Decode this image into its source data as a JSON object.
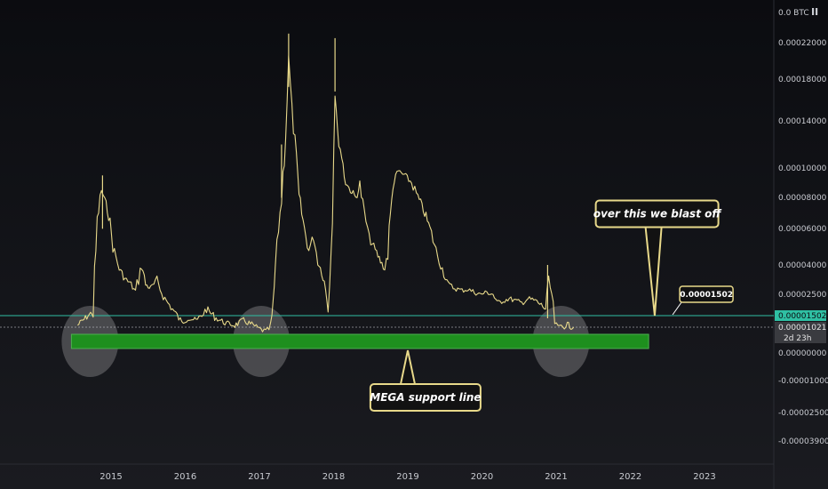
{
  "header": {
    "currency_label": "0.0 BTC"
  },
  "chart_data": {
    "type": "line",
    "y_unit": "BTC",
    "y_scale": "log-like",
    "y_ticks": [
      "0.00022000",
      "0.00018000",
      "0.00014000",
      "0.00010000",
      "0.00008000",
      "0.00006000",
      "0.00004000",
      "0.00002500",
      "0.00000000",
      "-0.00001000",
      "-0.00002500",
      "-0.00003900"
    ],
    "x_ticks": [
      "2015",
      "2016",
      "2017",
      "2018",
      "2019",
      "2020",
      "2021",
      "2022",
      "2023"
    ],
    "series": [
      {
        "points": [
          [
            "2014-07-20",
            1.1e-05
          ],
          [
            "2014-08-15",
            1.3e-05
          ],
          [
            "2014-09-10",
            1.5e-05
          ],
          [
            "2014-10-05",
            1.7e-05
          ],
          [
            "2014-10-25",
            6.5e-05
          ],
          [
            "2014-11-15",
            8.5e-05
          ],
          [
            "2014-12-01",
            7.8e-05
          ],
          [
            "2014-12-20",
            7e-05
          ],
          [
            "2015-01-10",
            5e-05
          ],
          [
            "2015-02-10",
            3.8e-05
          ],
          [
            "2015-03-10",
            3.3e-05
          ],
          [
            "2015-04-10",
            3e-05
          ],
          [
            "2015-05-01",
            2.6e-05
          ],
          [
            "2015-06-01",
            4e-05
          ],
          [
            "2015-06-20",
            3e-05
          ],
          [
            "2015-07-15",
            2.8e-05
          ],
          [
            "2015-08-15",
            3.2e-05
          ],
          [
            "2015-09-15",
            2.4e-05
          ],
          [
            "2015-10-15",
            2e-05
          ],
          [
            "2015-11-15",
            1.6e-05
          ],
          [
            "2015-12-15",
            1.2e-05
          ],
          [
            "2016-01-15",
            1.4e-05
          ],
          [
            "2016-03-01",
            1.3e-05
          ],
          [
            "2016-04-15",
            1.8e-05
          ],
          [
            "2016-06-01",
            1.4e-05
          ],
          [
            "2016-07-15",
            1.2e-05
          ],
          [
            "2016-09-01",
            1.1e-05
          ],
          [
            "2016-10-15",
            1.3e-05
          ],
          [
            "2016-12-01",
            1.1e-05
          ],
          [
            "2017-01-01",
            9.5e-06
          ],
          [
            "2017-02-01",
            8.5e-06
          ],
          [
            "2017-02-25",
            1e-05
          ],
          [
            "2017-03-10",
            2e-05
          ],
          [
            "2017-03-20",
            3.8e-05
          ],
          [
            "2017-04-05",
            6e-05
          ],
          [
            "2017-04-20",
            8e-05
          ],
          [
            "2017-05-10",
            0.00013
          ],
          [
            "2017-05-25",
            0.0002
          ],
          [
            "2017-06-10",
            0.00015
          ],
          [
            "2017-06-25",
            0.00012
          ],
          [
            "2017-07-15",
            8e-05
          ],
          [
            "2017-08-10",
            6e-05
          ],
          [
            "2017-09-01",
            4.8e-05
          ],
          [
            "2017-09-25",
            5.6e-05
          ],
          [
            "2017-10-15",
            4.2e-05
          ],
          [
            "2017-11-10",
            3.5e-05
          ],
          [
            "2017-12-05",
            2e-05
          ],
          [
            "2017-12-20",
            5e-05
          ],
          [
            "2018-01-08",
            0.00017
          ],
          [
            "2018-01-20",
            0.00013
          ],
          [
            "2018-02-10",
            0.00011
          ],
          [
            "2018-03-01",
            9e-05
          ],
          [
            "2018-03-25",
            8.5e-05
          ],
          [
            "2018-04-20",
            8e-05
          ],
          [
            "2018-05-10",
            8.8e-05
          ],
          [
            "2018-06-01",
            7e-05
          ],
          [
            "2018-06-25",
            5.5e-05
          ],
          [
            "2018-07-25",
            4.8e-05
          ],
          [
            "2018-08-20",
            4.2e-05
          ],
          [
            "2018-09-10",
            3.8e-05
          ],
          [
            "2018-09-25",
            4.8e-05
          ],
          [
            "2018-10-20",
            8.8e-05
          ],
          [
            "2018-11-15",
            9.8e-05
          ],
          [
            "2018-12-15",
            9.5e-05
          ],
          [
            "2019-01-20",
            9e-05
          ],
          [
            "2019-02-20",
            8e-05
          ],
          [
            "2019-03-25",
            7e-05
          ],
          [
            "2019-04-20",
            6e-05
          ],
          [
            "2019-05-20",
            4.8e-05
          ],
          [
            "2019-06-20",
            3.8e-05
          ],
          [
            "2019-07-20",
            3e-05
          ],
          [
            "2019-08-20",
            2.8e-05
          ],
          [
            "2019-09-25",
            2.7e-05
          ],
          [
            "2019-10-25",
            2.75e-05
          ],
          [
            "2019-11-25",
            2.6e-05
          ],
          [
            "2019-12-25",
            2.5e-05
          ],
          [
            "2020-01-25",
            2.6e-05
          ],
          [
            "2020-02-25",
            2.5e-05
          ],
          [
            "2020-03-15",
            2.1e-05
          ],
          [
            "2020-04-15",
            2.2e-05
          ],
          [
            "2020-05-15",
            2.3e-05
          ],
          [
            "2020-06-15",
            2.2e-05
          ],
          [
            "2020-07-15",
            2.1e-05
          ],
          [
            "2020-08-15",
            2.3e-05
          ],
          [
            "2020-09-20",
            2.2e-05
          ],
          [
            "2020-10-20",
            2e-05
          ],
          [
            "2020-11-10",
            1.8e-05
          ],
          [
            "2020-11-25",
            3.2e-05
          ],
          [
            "2020-12-10",
            2.5e-05
          ],
          [
            "2020-12-25",
            1.2e-05
          ],
          [
            "2021-01-10",
            1e-05
          ],
          [
            "2021-01-25",
            1.1e-05
          ],
          [
            "2021-02-10",
            1.05e-05
          ],
          [
            "2021-02-25",
            1.15e-05
          ],
          [
            "2021-03-15",
            1.02e-05
          ],
          [
            "2021-03-28",
            1.02e-05
          ]
        ]
      }
    ],
    "horizontal_lines": [
      {
        "value": 1.502e-05,
        "label": "0.00001502",
        "color": "#2fbfa3"
      },
      {
        "value": 1.021e-05,
        "label": "0.00001021",
        "color": "#bfc2c8"
      }
    ],
    "countdown_label": "2d 23h",
    "support_zone": {
      "label": "MEGA support line",
      "color": "#1e8f1e"
    },
    "annotations": [
      {
        "text": "over this we blast off"
      },
      {
        "text": "0.00001502"
      }
    ],
    "highlight_circles": [
      {
        "date": "2014-09-20"
      },
      {
        "date": "2017-01-10"
      },
      {
        "date": "2021-01-25"
      }
    ],
    "colors": {
      "background": "#0b0c10",
      "line": "#e8d98a",
      "resistance": "#2fbfa3",
      "support": "#1e8f1e",
      "callout_border": "#e8d98a",
      "callout_fill": "#121212"
    }
  }
}
